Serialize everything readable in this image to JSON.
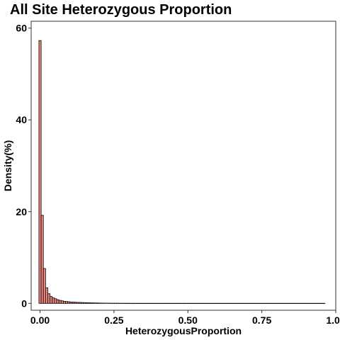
{
  "chart_data": {
    "type": "bar",
    "title": "All Site Heterozygous Proportion",
    "xlabel": "HeterozygousProportion",
    "ylabel": "Density(%)",
    "xlim": [
      -0.03,
      1.0
    ],
    "ylim": [
      -1.5,
      61.5
    ],
    "x_ticks": [
      0,
      0.25,
      0.5,
      0.75,
      1
    ],
    "x_tick_labels": [
      "0.00",
      "0.25",
      "0.50",
      "0.75",
      "1.00"
    ],
    "y_ticks": [
      0,
      20,
      40,
      60
    ],
    "y_tick_labels": [
      "0",
      "20",
      "40",
      "60"
    ],
    "bin_width": 0.0075,
    "bin_start": -0.00375,
    "bar_fill": "#F08A80",
    "bar_stroke": "#000000",
    "grid": false,
    "values": [
      57.3,
      19.2,
      7.6,
      3.4,
      2.1,
      1.5,
      1.2,
      1.0,
      0.8,
      0.65,
      0.55,
      0.45,
      0.4,
      0.35,
      0.3,
      0.27,
      0.24,
      0.22,
      0.2,
      0.18,
      0.16,
      0.14,
      0.12,
      0.11,
      0.1,
      0.09,
      0.08,
      0.07,
      0.06,
      0.05,
      0.045,
      0.04,
      0.035,
      0.03,
      0.03,
      0.025,
      0.025,
      0.02,
      0.02,
      0.02,
      0.015,
      0.015,
      0.015,
      0.01,
      0.01,
      0.01,
      0.01,
      0.01,
      0.01,
      0.01,
      0.01,
      0.01,
      0.01,
      0.01,
      0.01,
      0.01,
      0.01,
      0.01,
      0.01,
      0.01,
      0.01,
      0.01,
      0.01,
      0.01,
      0.01,
      0.01,
      0.01,
      0.01,
      0.01,
      0.01,
      0.01,
      0.01,
      0.01,
      0.01,
      0.01,
      0.01,
      0.01,
      0.01,
      0.01,
      0.01,
      0.01,
      0.01,
      0.01,
      0.01,
      0.01,
      0.01,
      0.01,
      0.01,
      0.01,
      0.01,
      0.01,
      0.01,
      0.01,
      0.01,
      0.01,
      0.01,
      0.01,
      0.01,
      0.01,
      0.01,
      0.01,
      0.01,
      0.01,
      0.01,
      0.01,
      0.01,
      0.01,
      0.01,
      0.01,
      0.01,
      0.01,
      0.01,
      0.01,
      0.01,
      0.01,
      0.01,
      0.01,
      0.01,
      0.01,
      0.01,
      0.01,
      0.01,
      0.01,
      0.01,
      0.01,
      0.01,
      0.01,
      0.01,
      0.01
    ]
  }
}
